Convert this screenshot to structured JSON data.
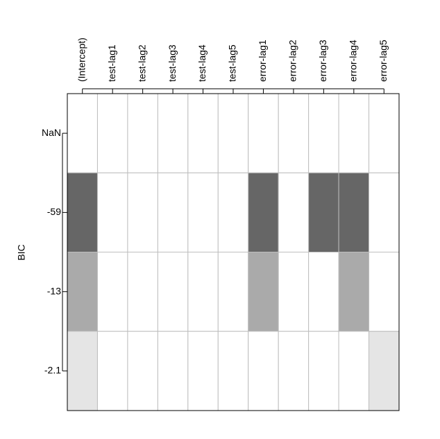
{
  "chart_data": {
    "type": "tile",
    "ylabel": "BIC",
    "categories": [
      "(Intercept)",
      "test-lag1",
      "test-lag2",
      "test-lag3",
      "test-lag4",
      "test-lag5",
      "error-lag1",
      "error-lag2",
      "error-lag3",
      "error-lag4",
      "error-lag5"
    ],
    "series": [
      {
        "name": "NaN",
        "values": [
          0,
          0,
          0,
          0,
          0,
          0,
          0,
          0,
          0,
          0,
          0
        ]
      },
      {
        "name": "-59",
        "color": "#666666",
        "values": [
          1,
          0,
          0,
          0,
          0,
          0,
          1,
          0,
          1,
          1,
          0
        ]
      },
      {
        "name": "-13",
        "color": "#aaaaaa",
        "values": [
          1,
          0,
          0,
          0,
          0,
          0,
          1,
          0,
          0,
          1,
          0
        ]
      },
      {
        "name": "-2.1",
        "color": "#e5e5e5",
        "values": [
          1,
          0,
          0,
          0,
          0,
          0,
          0,
          0,
          0,
          0,
          1
        ]
      }
    ]
  }
}
